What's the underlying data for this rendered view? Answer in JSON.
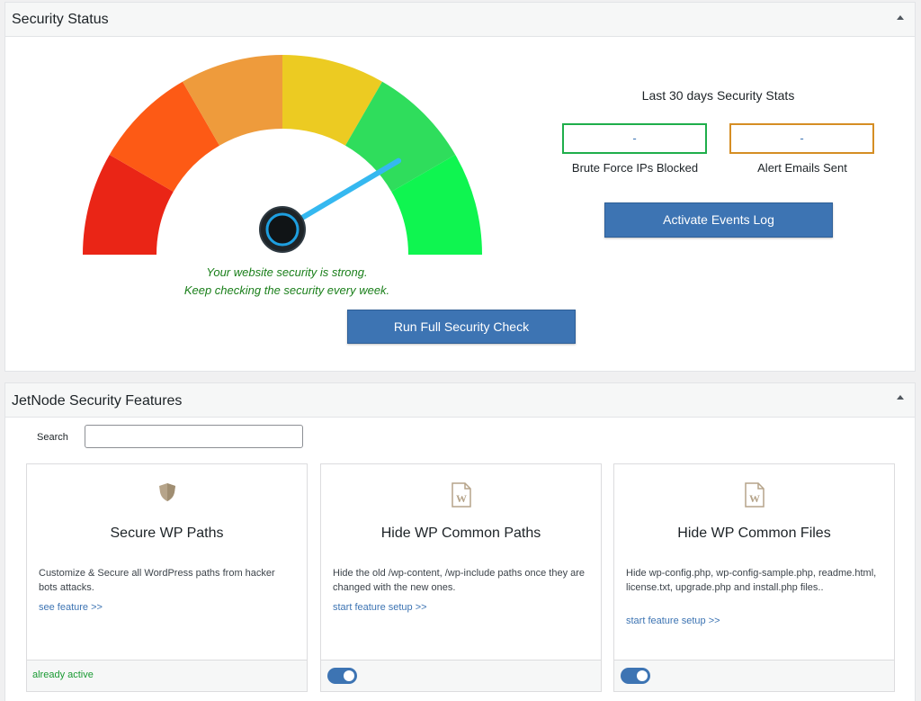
{
  "security_status": {
    "title": "Security Status",
    "gauge_level": 0.83,
    "gauge_colors": [
      "#ea2516",
      "#fd5a15",
      "#ee9b3c",
      "#eccb22",
      "#2fdd5c",
      "#0ff550"
    ],
    "message_line1": "Your website security is strong.",
    "message_line2": "Keep checking the security every week.",
    "run_check_label": "Run Full Security Check",
    "stats_heading": "Last 30 days Security Stats",
    "brute_force_value": "-",
    "brute_force_label": "Brute Force IPs Blocked",
    "alert_emails_value": "-",
    "alert_emails_label": "Alert Emails Sent",
    "activate_log_label": "Activate Events Log"
  },
  "features": {
    "title": "JetNode Security Features",
    "search_label": "Search",
    "search_value": "",
    "search_placeholder": "",
    "cards": [
      {
        "icon": "shield-icon",
        "title": "Secure WP Paths",
        "description": "Customize & Secure all WordPress paths from hacker bots attacks.",
        "link": "see feature >>",
        "status": "already active"
      },
      {
        "icon": "wordpress-file-icon",
        "title": "Hide WP Common Paths",
        "description": "Hide the old /wp-content, /wp-include paths once they are changed with the new ones.",
        "link": "start feature setup >>",
        "toggle_on": true
      },
      {
        "icon": "wordpress-file-icon",
        "title": "Hide WP Common Files",
        "description": "Hide wp-config.php, wp-config-sample.php, readme.html, license.txt, upgrade.php and install.php files..",
        "link": "start feature setup >>",
        "toggle_on": true
      }
    ]
  }
}
